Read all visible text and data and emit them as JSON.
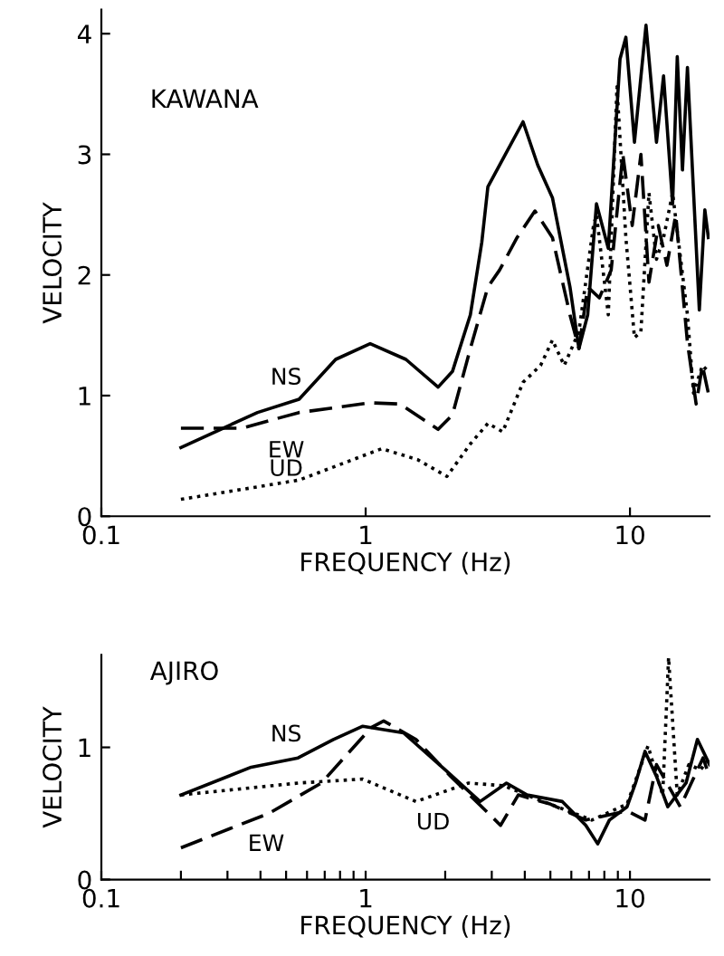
{
  "chart_data": [
    {
      "type": "line",
      "title": "KAWANA",
      "xlabel": "FREQUENCY (Hz)",
      "ylabel": "VELOCITY",
      "log": "x",
      "xlim": [
        0.1,
        20
      ],
      "ylim": [
        0,
        4.2
      ],
      "xticks": [
        0.1,
        1,
        10
      ],
      "yticks": [
        0,
        1,
        2,
        3,
        4
      ],
      "grid": false,
      "legend": false,
      "marker": "none",
      "series": [
        {
          "name": "NS",
          "color": "#000000",
          "line_style": "solid",
          "x": [
            0.2,
            0.39,
            0.56,
            0.77,
            1.04,
            1.42,
            1.88,
            2.13,
            2.49,
            2.75,
            2.9,
            3.38,
            3.94,
            4.48,
            5.09,
            5.93,
            6.41,
            6.92,
            7.47,
            8.28,
            9.17,
            9.65,
            10.4,
            11.5,
            12.6,
            13.4,
            14.5,
            15.1,
            15.8,
            16.5,
            18.3,
            19.2,
            19.8
          ],
          "values": [
            0.57,
            0.86,
            0.97,
            1.3,
            1.43,
            1.3,
            1.07,
            1.2,
            1.67,
            2.27,
            2.73,
            3.0,
            3.27,
            2.91,
            2.64,
            1.9,
            1.39,
            1.67,
            2.59,
            2.22,
            3.79,
            3.97,
            3.1,
            4.07,
            3.1,
            3.65,
            2.59,
            3.81,
            2.87,
            3.72,
            1.71,
            2.54,
            2.31
          ]
        },
        {
          "name": "EW",
          "color": "#000000",
          "line_style": "dashed",
          "x": [
            0.2,
            0.34,
            0.56,
            1.04,
            1.35,
            1.88,
            2.13,
            2.49,
            2.9,
            3.21,
            3.74,
            4.37,
            5.09,
            5.93,
            6.41,
            6.92,
            7.66,
            8.49,
            9.4,
            10.2,
            11.0,
            11.8,
            12.8,
            13.8,
            14.9,
            16.5,
            17.8,
            18.8,
            19.8
          ],
          "values": [
            0.73,
            0.73,
            0.86,
            0.94,
            0.93,
            0.72,
            0.84,
            1.39,
            1.9,
            2.04,
            2.31,
            2.53,
            2.31,
            1.67,
            1.39,
            1.9,
            1.81,
            2.04,
            3.0,
            2.41,
            3.0,
            1.94,
            2.41,
            2.08,
            2.5,
            1.44,
            0.93,
            1.25,
            1.02
          ]
        },
        {
          "name": "UD",
          "color": "#000000",
          "line_style": "dotted",
          "x": [
            0.2,
            0.56,
            1.15,
            1.57,
            2.03,
            2.49,
            2.9,
            3.3,
            3.94,
            4.59,
            5.09,
            5.64,
            6.41,
            7.28,
            7.47,
            8.28,
            8.93,
            9.65,
            10.4,
            11.0,
            11.8,
            12.6,
            13.4,
            14.5,
            16.5,
            17.4,
            18.8,
            19.8
          ],
          "values": [
            0.14,
            0.3,
            0.56,
            0.47,
            0.33,
            0.6,
            0.77,
            0.7,
            1.11,
            1.25,
            1.46,
            1.25,
            1.53,
            2.41,
            2.5,
            1.67,
            3.56,
            2.31,
            1.48,
            1.53,
            2.68,
            2.13,
            2.31,
            2.68,
            1.67,
            1.02,
            1.25,
            1.2
          ]
        }
      ]
    },
    {
      "type": "line",
      "title": "AJIRO",
      "xlabel": "FREQUENCY (Hz)",
      "ylabel": "VELOCITY",
      "log": "x",
      "xlim": [
        0.1,
        20
      ],
      "ylim": [
        0,
        1.7
      ],
      "xticks": [
        0.1,
        {
          "value": 0.2,
          "label": null
        },
        {
          "value": 0.3,
          "label": null
        },
        {
          "value": 0.4,
          "label": null
        },
        {
          "value": 0.5,
          "label": null
        },
        {
          "value": 0.6,
          "label": null
        },
        {
          "value": 0.7,
          "label": null
        },
        {
          "value": 0.8,
          "label": null
        },
        {
          "value": 0.9,
          "label": null
        },
        1,
        {
          "value": 2,
          "label": null
        },
        {
          "value": 3,
          "label": null
        },
        {
          "value": 4,
          "label": null
        },
        {
          "value": 5,
          "label": null
        },
        {
          "value": 6,
          "label": null
        },
        {
          "value": 7,
          "label": null
        },
        {
          "value": 8,
          "label": null
        },
        {
          "value": 9,
          "label": null
        },
        10
      ],
      "yticks": [
        0,
        1
      ],
      "grid": false,
      "legend": false,
      "marker": "none",
      "series": [
        {
          "name": "NS",
          "color": "#000000",
          "line_style": "solid",
          "x": [
            0.2,
            0.369,
            0.555,
            0.755,
            0.975,
            1.39,
            2.0,
            2.71,
            3.41,
            4.08,
            5.55,
            6.81,
            7.55,
            8.36,
            9.75,
            10.5,
            11.4,
            12.6,
            13.9,
            16.3,
            18.0,
            20.0
          ],
          "values": [
            0.64,
            0.85,
            0.92,
            1.06,
            1.16,
            1.11,
            0.83,
            0.59,
            0.73,
            0.64,
            0.59,
            0.41,
            0.27,
            0.45,
            0.55,
            0.73,
            0.97,
            0.78,
            0.55,
            0.73,
            1.06,
            0.87
          ]
        },
        {
          "name": "EW",
          "color": "#000000",
          "line_style": "dashed",
          "x": [
            0.2,
            0.43,
            0.68,
            1.05,
            1.17,
            1.55,
            2.1,
            3.24,
            3.78,
            5.01,
            6.81,
            9.75,
            11.4,
            12.6,
            15.5,
            18.9,
            20.0
          ],
          "values": [
            0.24,
            0.5,
            0.73,
            1.15,
            1.2,
            1.06,
            0.78,
            0.41,
            0.64,
            0.57,
            0.45,
            0.52,
            0.45,
            0.87,
            0.55,
            0.92,
            0.78
          ]
        },
        {
          "name": "UD",
          "color": "#000000",
          "line_style": "dotted",
          "x": [
            0.2,
            0.555,
            0.975,
            1.55,
            2.45,
            3.33,
            4.3,
            7.17,
            9.75,
            11.7,
            13.3,
            14.0,
            15.1,
            16.7,
            18.5,
            20.0
          ],
          "values": [
            0.64,
            0.73,
            0.76,
            0.59,
            0.73,
            0.71,
            0.62,
            0.45,
            0.57,
            1.01,
            0.64,
            1.68,
            0.64,
            0.87,
            0.83,
            0.92
          ]
        }
      ]
    }
  ]
}
